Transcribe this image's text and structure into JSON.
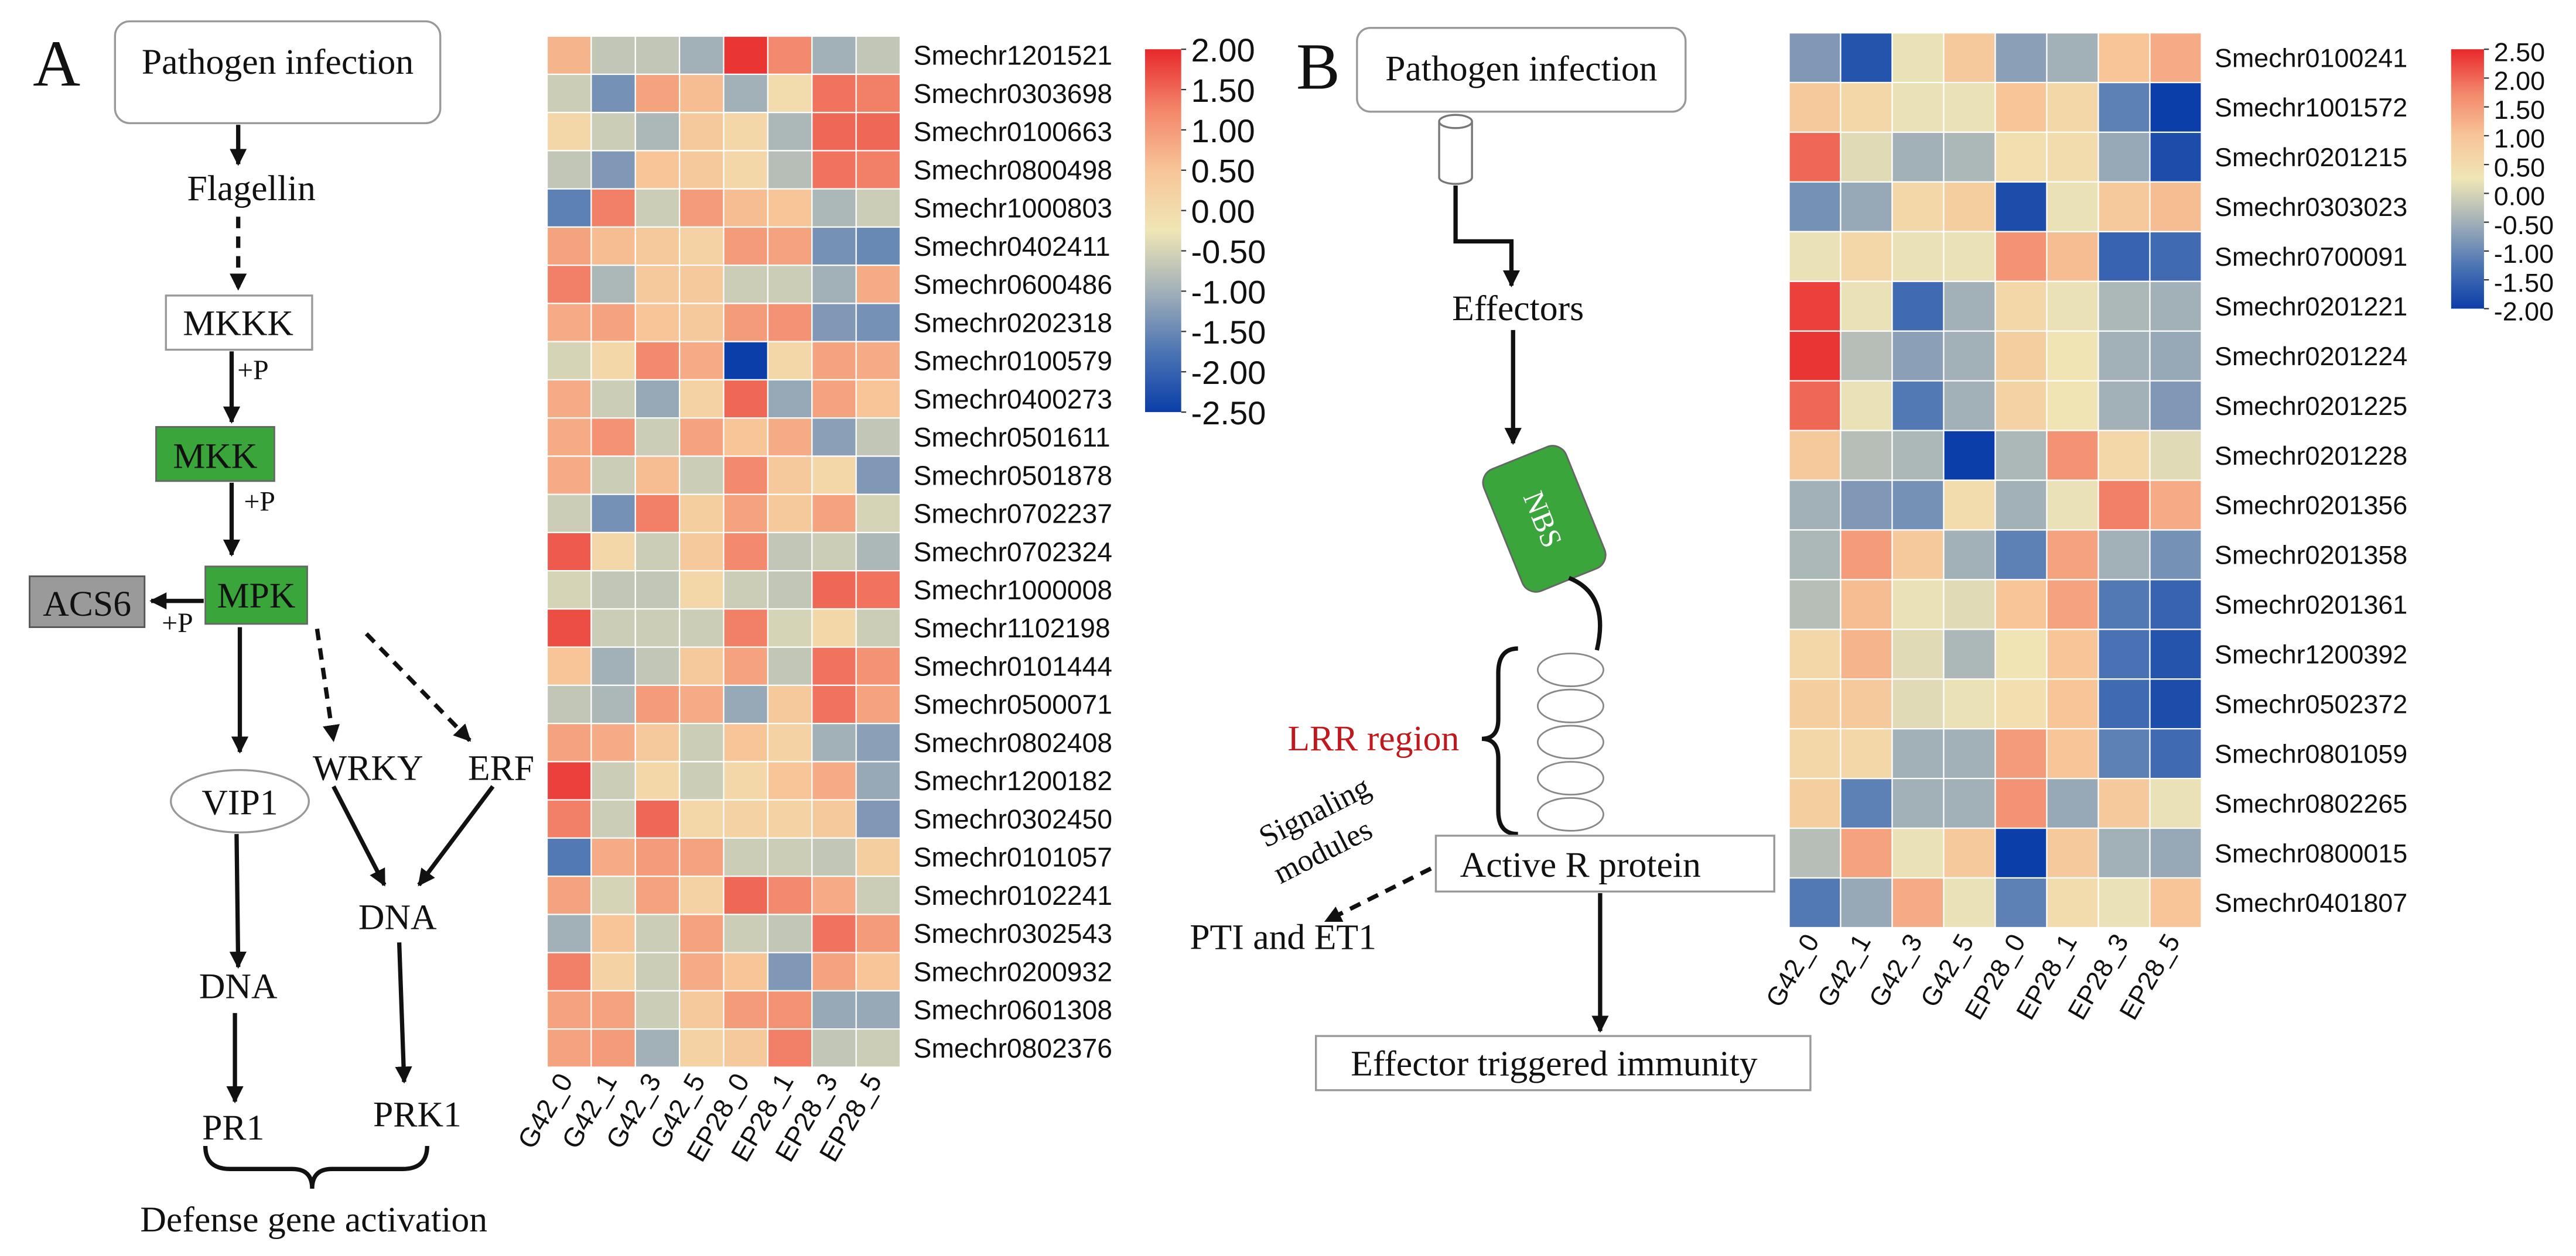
{
  "chart_data": [
    {
      "type": "heatmap",
      "columns": [
        "G42_0",
        "G42_1",
        "G42_3",
        "G42_5",
        "EP28_0",
        "EP28_1",
        "EP28_3",
        "EP28_5"
      ],
      "rows": [
        "Smechr1201521",
        "Smechr0303698",
        "Smechr0100663",
        "Smechr0800498",
        "Smechr1000803",
        "Smechr0402411",
        "Smechr0600486",
        "Smechr0202318",
        "Smechr0100579",
        "Smechr0400273",
        "Smechr0501611",
        "Smechr0501878",
        "Smechr0702237",
        "Smechr0702324",
        "Smechr1000008",
        "Smechr1102198",
        "Smechr0101444",
        "Smechr0500071",
        "Smechr0802408",
        "Smechr1200182",
        "Smechr0302450",
        "Smechr0101057",
        "Smechr0102241",
        "Smechr0302543",
        "Smechr0200932",
        "Smechr0601308",
        "Smechr0802376"
      ],
      "values": [
        [
          0.7,
          -0.7,
          -0.7,
          -1.0,
          1.9,
          1.2,
          -1.0,
          -0.7
        ],
        [
          -0.6,
          -1.4,
          0.9,
          0.6,
          -1.0,
          0,
          1.4,
          1.3
        ],
        [
          0.1,
          -0.6,
          -0.9,
          0.4,
          0.1,
          -0.9,
          1.5,
          1.5
        ],
        [
          -0.7,
          -1.3,
          0.5,
          0.4,
          0.1,
          -0.8,
          1.4,
          1.3
        ],
        [
          -1.6,
          1.3,
          -0.6,
          1.0,
          0.6,
          0.5,
          -0.9,
          -0.6
        ],
        [
          0.9,
          0.6,
          0.4,
          0.2,
          1.0,
          0.9,
          -1.4,
          -1.5
        ],
        [
          1.3,
          -0.9,
          0.4,
          0.4,
          -0.6,
          -0.6,
          -1.0,
          0.8
        ],
        [
          0.8,
          0.9,
          0.5,
          0.4,
          1.0,
          1.1,
          -1.3,
          -1.4
        ],
        [
          -0.5,
          0.1,
          1.2,
          0.8,
          -2.5,
          0.1,
          0.9,
          0.8
        ],
        [
          0.8,
          -0.6,
          -1.1,
          0.2,
          1.5,
          -1.1,
          0.9,
          0.5
        ],
        [
          0.8,
          1.1,
          -0.6,
          0.9,
          0.5,
          0.8,
          -1.2,
          -0.7
        ],
        [
          0.8,
          -0.6,
          0.6,
          -0.6,
          1.2,
          0.4,
          0.1,
          -1.3
        ],
        [
          -0.6,
          -1.4,
          1.3,
          0.3,
          0.9,
          0.4,
          0.9,
          -0.5
        ],
        [
          1.6,
          0.1,
          -0.6,
          0.4,
          1.2,
          -0.7,
          -0.6,
          -0.9
        ],
        [
          -0.5,
          -0.7,
          -0.7,
          0.1,
          -0.6,
          -0.7,
          1.5,
          1.4
        ],
        [
          1.7,
          -0.6,
          -0.6,
          -0.6,
          1.3,
          -0.5,
          0.1,
          -0.6
        ],
        [
          0.5,
          -1.0,
          -0.7,
          0.4,
          0.9,
          -0.7,
          1.4,
          1.1
        ],
        [
          -0.7,
          -0.9,
          1.0,
          0.8,
          -1.1,
          0.4,
          1.4,
          0.9
        ],
        [
          0.9,
          0.8,
          0.4,
          -0.6,
          0.5,
          0.2,
          -1.0,
          -1.2
        ],
        [
          1.8,
          -0.6,
          0.1,
          -0.6,
          0.1,
          0.5,
          0.8,
          -1.1
        ],
        [
          1.3,
          -0.6,
          1.5,
          0.1,
          0.2,
          0.2,
          0.4,
          -1.3
        ],
        [
          -1.7,
          0.8,
          1.0,
          0.9,
          -0.6,
          -0.6,
          -0.7,
          0.3
        ],
        [
          0.9,
          -0.5,
          0.9,
          0.2,
          1.5,
          1.2,
          0.8,
          -0.6
        ],
        [
          -1.0,
          0.5,
          -0.6,
          0.9,
          -0.6,
          -0.7,
          1.4,
          1.0
        ],
        [
          1.3,
          0.2,
          -0.6,
          0.8,
          0.5,
          -1.3,
          0.9,
          0.5
        ],
        [
          0.9,
          0.9,
          -0.6,
          0.4,
          1.0,
          1.1,
          -1.1,
          -1.1
        ],
        [
          0.9,
          1.0,
          -1.0,
          0.2,
          0.4,
          1.3,
          -0.7,
          -0.6
        ]
      ],
      "zlim": [
        -2.5,
        2
      ],
      "zticks": [
        {
          "value": 2,
          "label": "2.00"
        },
        {
          "value": 1.5,
          "label": "1.50"
        },
        {
          "value": 1,
          "label": "1.00"
        },
        {
          "value": 0.5,
          "label": "0.50"
        },
        {
          "value": 0,
          "label": "0.00"
        },
        {
          "value": -0.5,
          "label": "-0.50"
        },
        {
          "value": -1,
          "label": "-1.00"
        },
        {
          "value": -1.5,
          "label": "-1.50"
        },
        {
          "value": -2,
          "label": "-2.00"
        },
        {
          "value": -2.5,
          "label": "-2.50"
        }
      ],
      "colors": [
        "#0b3ea8",
        "#4d75b4",
        "#a2b0b8",
        "#efe6b6",
        "#f7c598",
        "#f3866a",
        "#e8282b"
      ]
    },
    {
      "type": "heatmap",
      "columns": [
        "G42_0",
        "G42_1",
        "G42_3",
        "G42_5",
        "EP28_0",
        "EP28_1",
        "EP28_3",
        "EP28_5"
      ],
      "rows": [
        "Smechr0100241",
        "Smechr1001572",
        "Smechr0201215",
        "Smechr0303023",
        "Smechr0700091",
        "Smechr0201221",
        "Smechr0201224",
        "Smechr0201225",
        "Smechr0201228",
        "Smechr0201356",
        "Smechr0201358",
        "Smechr0201361",
        "Smechr1200392",
        "Smechr0502372",
        "Smechr0801059",
        "Smechr0802265",
        "Smechr0800015",
        "Smechr0401807"
      ],
      "values": [
        [
          -0.8,
          -1.7,
          0.2,
          0.9,
          -0.7,
          -0.5,
          1.0,
          1.3
        ],
        [
          0.9,
          0.6,
          0.2,
          0.2,
          1.0,
          0.6,
          -1.1,
          -2.0
        ],
        [
          2.0,
          0.1,
          -0.5,
          -0.4,
          0.4,
          0.5,
          -0.6,
          -1.8
        ],
        [
          -0.9,
          -0.6,
          0.6,
          0.8,
          -1.8,
          0.2,
          0.9,
          1.1
        ],
        [
          0.2,
          0.6,
          0.2,
          0.2,
          1.6,
          1.1,
          -1.5,
          -1.4
        ],
        [
          2.3,
          0.2,
          -1.4,
          -0.5,
          0.6,
          0.2,
          -0.4,
          -0.5
        ],
        [
          2.4,
          -0.3,
          -0.7,
          -0.5,
          0.8,
          0.3,
          -0.5,
          -0.6
        ],
        [
          2.0,
          0.2,
          -1.2,
          -0.5,
          0.7,
          0.3,
          -0.5,
          -0.8
        ],
        [
          0.9,
          -0.3,
          -0.4,
          -2.0,
          -0.4,
          1.6,
          0.6,
          0.1
        ],
        [
          -0.5,
          -0.8,
          -0.9,
          0.5,
          -0.5,
          0.2,
          1.8,
          1.3
        ],
        [
          -0.4,
          1.5,
          0.9,
          -0.5,
          -1.1,
          1.4,
          -0.5,
          -0.9
        ],
        [
          -0.3,
          1.1,
          0.2,
          0.1,
          1.0,
          1.4,
          -1.2,
          -1.5
        ],
        [
          0.6,
          1.2,
          0.1,
          -0.4,
          0.3,
          1.0,
          -1.3,
          -1.7
        ],
        [
          0.8,
          0.9,
          0.1,
          0.2,
          0.4,
          1.0,
          -1.4,
          -1.8
        ],
        [
          0.6,
          0.6,
          -0.5,
          -0.5,
          1.5,
          1.0,
          -1.1,
          -1.4
        ],
        [
          0.8,
          -1.1,
          -0.5,
          -0.5,
          1.6,
          -0.6,
          0.9,
          0.2
        ],
        [
          -0.3,
          1.4,
          0.2,
          0.9,
          -2.0,
          0.9,
          -0.5,
          -0.6
        ],
        [
          -1.2,
          -0.6,
          1.3,
          0.2,
          -1.1,
          0.5,
          0.2,
          1.0
        ]
      ],
      "zlim": [
        -2,
        2.5
      ],
      "zticks": [
        {
          "value": 2.5,
          "label": "2.50"
        },
        {
          "value": 2,
          "label": "2.00"
        },
        {
          "value": 1.5,
          "label": "1.50"
        },
        {
          "value": 1,
          "label": "1.00"
        },
        {
          "value": 0.5,
          "label": "0.50"
        },
        {
          "value": 0,
          "label": "0.00"
        },
        {
          "value": -0.5,
          "label": "-0.50"
        },
        {
          "value": -1,
          "label": "-1.00"
        },
        {
          "value": -1.5,
          "label": "-1.50"
        },
        {
          "value": -2,
          "label": "-2.00"
        }
      ],
      "colors": [
        "#0b3ea8",
        "#4d75b4",
        "#a2b0b8",
        "#efe6b6",
        "#f7c598",
        "#f3866a",
        "#e8282b"
      ]
    }
  ],
  "panel_a": {
    "label": "A",
    "pathogen": "Pathogen infection",
    "flagellin": "Flagellin",
    "mkkk": "MKKK",
    "p1": "+P",
    "mkk": "MKK",
    "p2": "+P",
    "mpk": "MPK",
    "acs6": "ACS6",
    "p3": "+P",
    "vip1": "VIP1",
    "wrky": "WRKY",
    "erf": "ERF",
    "dna1": "DNA",
    "dna2": "DNA",
    "pr1": "PR1",
    "prk1": "PRK1",
    "defense": "Defense gene activation"
  },
  "panel_b": {
    "label": "B",
    "pathogen": "Pathogen infection",
    "effectors": "Effectors",
    "nbs": "NBS",
    "lrr": "LRR region",
    "active": "Active R protein",
    "signaling": [
      "Signaling",
      "modules"
    ],
    "pti": "PTI and ET1",
    "eti": "Effector triggered immunity"
  }
}
